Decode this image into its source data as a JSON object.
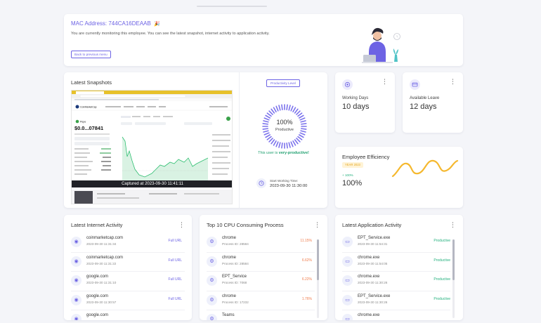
{
  "header": {
    "mac_label": "MAC Address: 744CA16DEAAB",
    "mac_emoji": "🎉",
    "description": "You are currently monitoring this employee. You can see the latest snapshot, internet activity to application activity.",
    "back_button": "Back to previous menu"
  },
  "snapshots": {
    "title": "Latest Snapshots",
    "caption": "Captured at 2023-09-30 11:41:11",
    "productivity_button": "Productivity Level",
    "gauge_percent": "100%",
    "gauge_label": "Productive",
    "gauge_value": 1.0,
    "verdict_prefix": "This user is ",
    "verdict_strong": "very-productive!",
    "start_label": "Start Working Time:",
    "start_time": "2023-09-30 11:30:00",
    "shot": {
      "brand": "CoinMarketCap",
      "coin": "Pepe",
      "price": "$0.0...07841"
    }
  },
  "working_days": {
    "label": "Working Days",
    "value": "10 days"
  },
  "available_leave": {
    "label": "Available Leave",
    "value": "12 days"
  },
  "efficiency": {
    "title": "Employee Efficiency",
    "year_badge": "YEAR 2023",
    "change": "+ 100%",
    "value": "100%",
    "line_color": "#f5b82e"
  },
  "internet": {
    "title": "Latest Internet Activity",
    "rows": [
      {
        "site": "coinmarketcap.com",
        "time": "2023-09-30 11:31:34",
        "action": "Full URL"
      },
      {
        "site": "coinmarketcap.com",
        "time": "2023-09-30 11:31:22",
        "action": "Full URL"
      },
      {
        "site": "google.com",
        "time": "2023-09-30 11:31:10",
        "action": "Full URL"
      },
      {
        "site": "google.com",
        "time": "2023-09-30 11:30:57",
        "action": "Full URL"
      },
      {
        "site": "google.com",
        "time": "",
        "action": ""
      }
    ]
  },
  "cpu": {
    "title": "Top 10 CPU Consuming Process",
    "rows": [
      {
        "name": "chrome",
        "pid": "Process ID: 28584",
        "pct": "11.15%"
      },
      {
        "name": "chrome",
        "pid": "Process ID: 28584",
        "pct": "6.62%"
      },
      {
        "name": "EPT_Service",
        "pid": "Process ID: 7068",
        "pct": "6.22%"
      },
      {
        "name": "chrome",
        "pid": "Process ID: 17232",
        "pct": "1.76%"
      },
      {
        "name": "Teams",
        "pid": "",
        "pct": ""
      }
    ]
  },
  "apps": {
    "title": "Latest Application Activity",
    "rows": [
      {
        "name": "EPT_Service.exe",
        "time": "2023-09-30 11:54:31",
        "status": "Productive"
      },
      {
        "name": "chrome.exe",
        "time": "2023-09-30 11:54:05",
        "status": "Productive"
      },
      {
        "name": "chrome.exe",
        "time": "2023-09-30 11:30:26",
        "status": "Productive"
      },
      {
        "name": "EPT_Service.exe",
        "time": "2023-09-30 11:30:26",
        "status": "Productive"
      },
      {
        "name": "chrome.exe",
        "time": "",
        "status": ""
      }
    ]
  },
  "colors": {
    "accent": "#6d63e4",
    "link": "#6d63e4",
    "productive": "#22b07d",
    "cpu_pct": "#f07c4c"
  }
}
